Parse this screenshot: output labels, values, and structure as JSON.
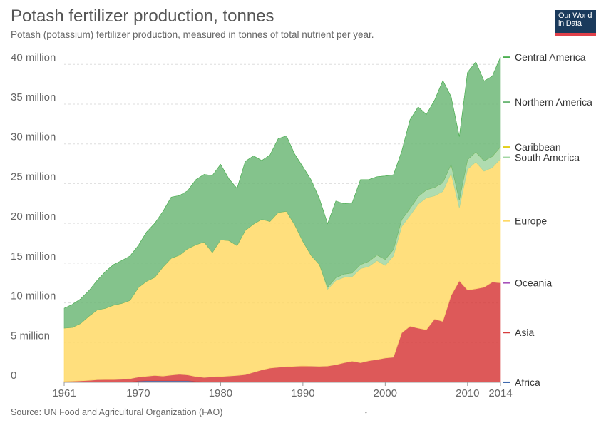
{
  "title": "Potash fertilizer production, tonnes",
  "subtitle": "Potash (potassium) fertilizer production, measured in tonnes of total nutrient per year.",
  "logo": {
    "line1": "Our World",
    "line2": "in Data"
  },
  "source": "Source: UN Food and Agricultural Organization (FAO)",
  "footer_mark": "•",
  "chart_data": {
    "type": "area",
    "stacked": true,
    "x": [
      1961,
      1962,
      1963,
      1964,
      1965,
      1966,
      1967,
      1968,
      1969,
      1970,
      1971,
      1972,
      1973,
      1974,
      1975,
      1976,
      1977,
      1978,
      1979,
      1980,
      1981,
      1982,
      1983,
      1984,
      1985,
      1986,
      1987,
      1988,
      1989,
      1990,
      1991,
      1992,
      1993,
      1994,
      1995,
      1996,
      1997,
      1998,
      1999,
      2000,
      2001,
      2002,
      2003,
      2004,
      2005,
      2006,
      2007,
      2008,
      2009,
      2010,
      2011,
      2012,
      2013,
      2014
    ],
    "xlim": [
      1961,
      2014
    ],
    "ylim": [
      0,
      42000000
    ],
    "x_ticks": [
      1961,
      1970,
      1980,
      1990,
      2000,
      2010,
      2014
    ],
    "y_ticks": [
      {
        "value": 0,
        "label": "0"
      },
      {
        "value": 5000000,
        "label": "5 million"
      },
      {
        "value": 10000000,
        "label": "10 million"
      },
      {
        "value": 15000000,
        "label": "15 million"
      },
      {
        "value": 20000000,
        "label": "20 million"
      },
      {
        "value": 25000000,
        "label": "25 million"
      },
      {
        "value": 30000000,
        "label": "30 million"
      },
      {
        "value": 35000000,
        "label": "35 million"
      },
      {
        "value": 40000000,
        "label": "40 million"
      }
    ],
    "grid": true,
    "legend_placement": "right",
    "series": [
      {
        "name": "Africa",
        "color": "#3360a9",
        "values": [
          20000,
          20000,
          20000,
          20000,
          20000,
          20000,
          20000,
          20000,
          30000,
          150000,
          200000,
          200000,
          200000,
          200000,
          200000,
          200000,
          100000,
          50000,
          20000,
          20000,
          10000,
          10000,
          10000,
          10000,
          10000,
          10000,
          10000,
          10000,
          10000,
          10000,
          10000,
          10000,
          10000,
          10000,
          10000,
          10000,
          10000,
          10000,
          10000,
          10000,
          10000,
          10000,
          10000,
          10000,
          10000,
          10000,
          10000,
          10000,
          10000,
          10000,
          10000,
          10000,
          10000,
          10000
        ]
      },
      {
        "name": "Asia",
        "color": "#d73c3c",
        "values": [
          100000,
          120000,
          160000,
          220000,
          300000,
          320000,
          320000,
          360000,
          420000,
          500000,
          560000,
          660000,
          580000,
          700000,
          800000,
          720000,
          620000,
          560000,
          660000,
          700000,
          780000,
          850000,
          950000,
          1250000,
          1550000,
          1780000,
          1880000,
          1950000,
          2000000,
          2050000,
          2020000,
          2000000,
          2040000,
          2200000,
          2450000,
          2650000,
          2450000,
          2700000,
          2850000,
          3050000,
          3150000,
          6200000,
          7050000,
          6800000,
          6600000,
          7950000,
          7650000,
          10900000,
          12750000,
          11600000,
          11750000,
          11950000,
          12600000,
          12500000
        ]
      },
      {
        "name": "Oceania",
        "color": "#a652ba",
        "values": [
          0,
          0,
          0,
          0,
          0,
          0,
          0,
          0,
          0,
          0,
          0,
          0,
          0,
          0,
          0,
          0,
          0,
          0,
          0,
          0,
          0,
          0,
          0,
          0,
          0,
          0,
          0,
          0,
          0,
          0,
          0,
          0,
          0,
          0,
          0,
          0,
          0,
          0,
          0,
          0,
          0,
          0,
          0,
          0,
          0,
          0,
          0,
          0,
          0,
          0,
          0,
          0,
          0,
          0
        ]
      },
      {
        "name": "Europe",
        "color": "#ffd966",
        "values": [
          6700000,
          6760000,
          7220000,
          8060000,
          8780000,
          8960000,
          9360000,
          9540000,
          9850000,
          11250000,
          11940000,
          12340000,
          13720000,
          14700000,
          15000000,
          15880000,
          16580000,
          17040000,
          15640000,
          17200000,
          17040000,
          16330000,
          18140000,
          18640000,
          18950000,
          18440000,
          19470000,
          19550000,
          17800000,
          15650000,
          13930000,
          12800000,
          9660000,
          10600000,
          10750000,
          10650000,
          11850000,
          11850000,
          12450000,
          11650000,
          12750000,
          13400000,
          13900000,
          15600000,
          16600000,
          15500000,
          16350000,
          15400000,
          9200000,
          15200000,
          15950000,
          14600000,
          14400000,
          15600000
        ]
      },
      {
        "name": "South America",
        "color": "#a2d6a2",
        "values": [
          0,
          0,
          0,
          0,
          0,
          0,
          0,
          0,
          0,
          0,
          0,
          0,
          0,
          0,
          0,
          0,
          0,
          0,
          0,
          0,
          0,
          0,
          0,
          0,
          0,
          0,
          0,
          0,
          0,
          0,
          0,
          0,
          250000,
          350000,
          400000,
          450000,
          500000,
          650000,
          700000,
          750000,
          800000,
          850000,
          900000,
          950000,
          1000000,
          1050000,
          1100000,
          1100000,
          950000,
          1200000,
          1250000,
          1300000,
          1400000,
          1500000
        ]
      },
      {
        "name": "Caribbean",
        "color": "#e3cf1b",
        "values": [
          0,
          0,
          0,
          0,
          0,
          0,
          0,
          0,
          0,
          0,
          0,
          0,
          0,
          0,
          0,
          0,
          0,
          0,
          0,
          0,
          0,
          0,
          0,
          0,
          0,
          0,
          0,
          0,
          0,
          0,
          0,
          0,
          0,
          0,
          0,
          0,
          0,
          0,
          0,
          0,
          0,
          0,
          0,
          0,
          0,
          0,
          0,
          0,
          0,
          0,
          0,
          0,
          0,
          0
        ]
      },
      {
        "name": "Northern America",
        "color": "#6eb878",
        "values": [
          2500000,
          2900000,
          3100000,
          3220000,
          3720000,
          4620000,
          5120000,
          5400000,
          5600000,
          5300000,
          6200000,
          6800000,
          7000000,
          7700000,
          7500000,
          7300000,
          8200000,
          8500000,
          9700000,
          9500000,
          7800000,
          7200000,
          8700000,
          8600000,
          7400000,
          8370000,
          9300000,
          9500000,
          8900000,
          9400000,
          9500000,
          8300000,
          8000000,
          9650000,
          8850000,
          8850000,
          10700000,
          10300000,
          9850000,
          10500000,
          9400000,
          8600000,
          11150000,
          11300000,
          9500000,
          11000000,
          12850000,
          8550000,
          8000000,
          11000000,
          11350000,
          10050000,
          10100000,
          11300000
        ]
      },
      {
        "name": "Central America",
        "color": "#4caf50",
        "values": [
          0,
          0,
          0,
          0,
          0,
          0,
          0,
          0,
          0,
          0,
          0,
          0,
          0,
          0,
          0,
          0,
          0,
          0,
          0,
          0,
          0,
          0,
          0,
          0,
          0,
          0,
          0,
          0,
          0,
          0,
          0,
          0,
          0,
          0,
          0,
          0,
          0,
          0,
          0,
          0,
          0,
          0,
          0,
          0,
          0,
          0,
          0,
          0,
          0,
          0,
          0,
          0,
          0,
          0
        ]
      }
    ]
  }
}
